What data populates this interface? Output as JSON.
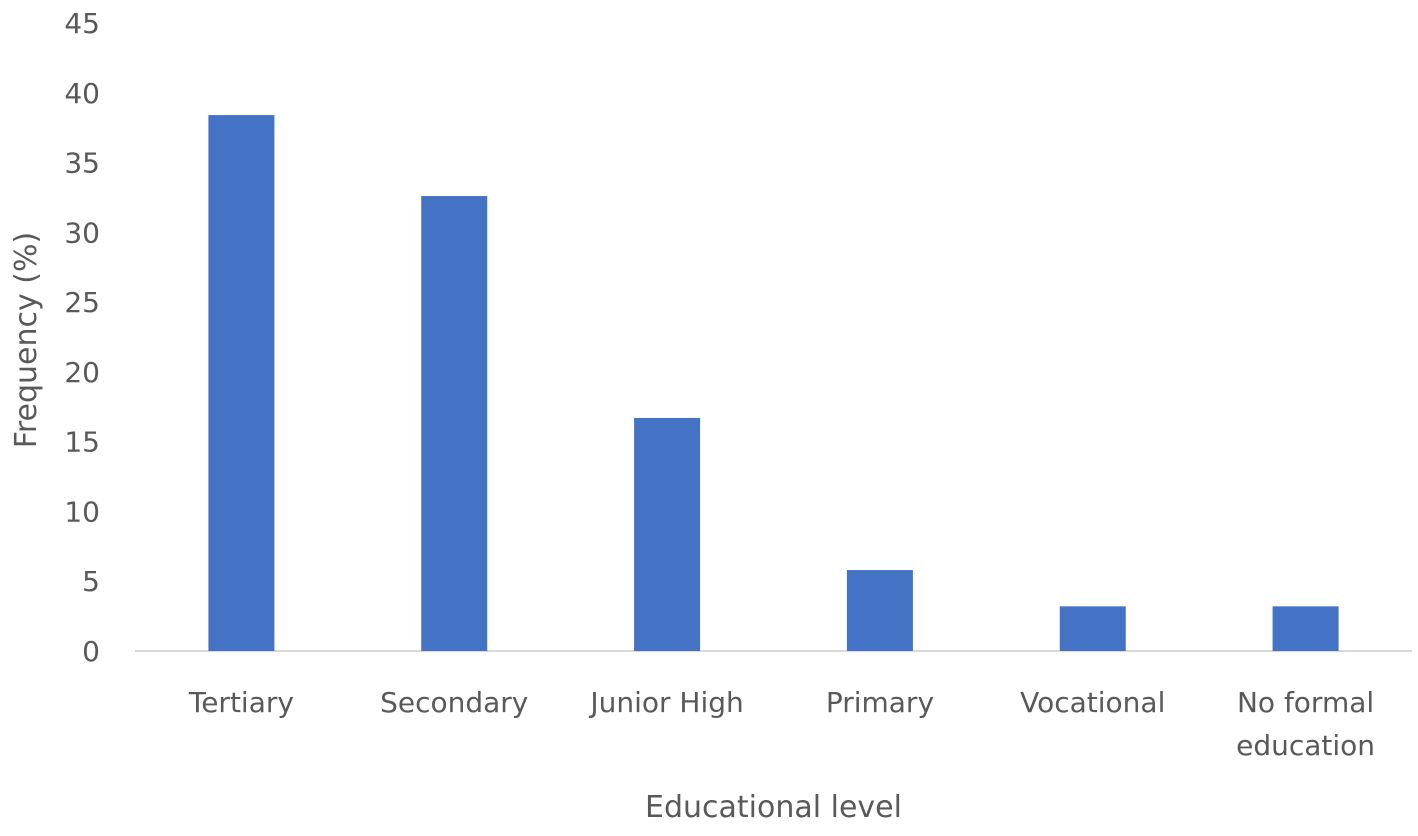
{
  "chart_data": {
    "type": "bar",
    "categories": [
      [
        "Tertiary"
      ],
      [
        "Secondary"
      ],
      [
        "Junior High"
      ],
      [
        "Primary"
      ],
      [
        "Vocational"
      ],
      [
        "No formal",
        "education"
      ]
    ],
    "values": [
      38.4,
      32.6,
      16.7,
      5.8,
      3.2,
      3.2
    ],
    "xlabel": "Educational level",
    "ylabel": "Frequency (%)",
    "ylim": [
      0,
      45
    ],
    "yticks": [
      "0",
      "5",
      "10",
      "15",
      "20",
      "25",
      "30",
      "35",
      "40",
      "45"
    ],
    "grid": false,
    "legend": "none",
    "bar_color": "#4472c4"
  }
}
